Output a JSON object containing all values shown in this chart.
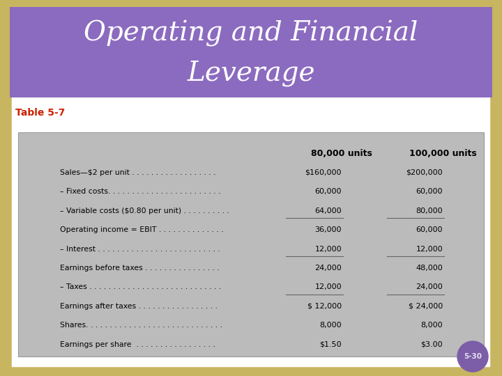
{
  "title_line1": "Operating and Financial",
  "title_line2": "Leverage",
  "title_bg_color": "#8B6BBF",
  "title_text_color": "#FFFFFF",
  "table_label": "Table 5-7",
  "table_label_color": "#CC2200",
  "outer_bg_color": "#C8B560",
  "inner_bg_color": "#FFFFFF",
  "table_bg_color": "#BBBBBB",
  "col_headers": [
    "80,000 units",
    "100,000 units"
  ],
  "rows": [
    {
      "label": "Sales—$2 per unit . . . . . . . . . . . . . . . . . .",
      "col1": "$160,000",
      "col2": "$200,000",
      "underline": false
    },
    {
      "label": "– Fixed costs. . . . . . . . . . . . . . . . . . . . . . . .",
      "col1": "60,000",
      "col2": "60,000",
      "underline": false
    },
    {
      "label": "– Variable costs ($0.80 per unit) . . . . . . . . . .",
      "col1": "64,000",
      "col2": "80,000",
      "underline": true
    },
    {
      "label": "Operating income = EBIT . . . . . . . . . . . . . .",
      "col1": "36,000",
      "col2": "60,000",
      "underline": false
    },
    {
      "label": "– Interest . . . . . . . . . . . . . . . . . . . . . . . . . .",
      "col1": "12,000",
      "col2": "12,000",
      "underline": true
    },
    {
      "label": "Earnings before taxes . . . . . . . . . . . . . . . .",
      "col1": "24,000",
      "col2": "48,000",
      "underline": false
    },
    {
      "label": "– Taxes . . . . . . . . . . . . . . . . . . . . . . . . . . . .",
      "col1": "12,000",
      "col2": "24,000",
      "underline": true
    },
    {
      "label": "Earnings after taxes . . . . . . . . . . . . . . . . .",
      "col1": "$ 12,000",
      "col2": "$ 24,000",
      "underline": false
    },
    {
      "label": "Shares. . . . . . . . . . . . . . . . . . . . . . . . . . . . .",
      "col1": "8,000",
      "col2": "8,000",
      "underline": false
    },
    {
      "label": "Earnings per share  . . . . . . . . . . . . . . . . .",
      "col1": "$1.50",
      "col2": "$3.00",
      "underline": false
    }
  ],
  "footer_text": "5-30",
  "footer_bg": "#7B5EA7",
  "footer_text_color": "#E8E0F0"
}
